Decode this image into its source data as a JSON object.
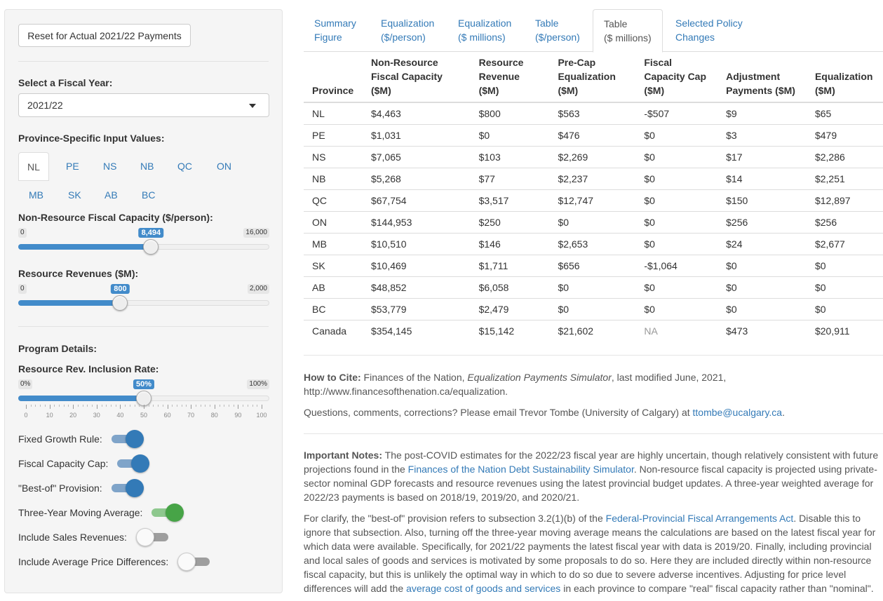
{
  "sidebar": {
    "reset_label": "Reset for Actual 2021/22 Payments",
    "fiscal_year_label": "Select a Fiscal Year:",
    "fiscal_year_value": "2021/22",
    "province_inputs_label": "Province-Specific Input Values:",
    "province_tabs": [
      "NL",
      "PE",
      "NS",
      "NB",
      "QC",
      "ON",
      "MB",
      "SK",
      "AB",
      "BC"
    ],
    "active_province": "NL",
    "nonres_label": "Non-Resource Fiscal Capacity ($/person):",
    "nonres_slider": {
      "min": 0,
      "max": 16000,
      "value": 8494,
      "min_label": "0",
      "max_label": "16,000",
      "value_label": "8,494"
    },
    "resrev_label": "Resource Revenues ($M):",
    "resrev_slider": {
      "min": 0,
      "max": 2000,
      "value": 800,
      "min_label": "0",
      "max_label": "2,000",
      "value_label": "800"
    },
    "program_label": "Program Details:",
    "inclusion_label": "Resource Rev. Inclusion Rate:",
    "inclusion_slider": {
      "min": 0,
      "max": 100,
      "value": 50,
      "min_label": "0%",
      "max_label": "100%",
      "value_label": "50%",
      "tick_labels": [
        "0",
        "10",
        "20",
        "30",
        "40",
        "50",
        "60",
        "70",
        "80",
        "90",
        "100"
      ]
    },
    "switches": [
      {
        "label": "Fixed Growth Rule:",
        "on": true
      },
      {
        "label": "Fiscal Capacity Cap:",
        "on": true
      },
      {
        "label": "\"Best-of\" Provision:",
        "on": true
      },
      {
        "label": "Three-Year Moving Average:",
        "on": true
      },
      {
        "label": "Include Sales Revenues:",
        "on": false
      },
      {
        "label": "Include Average Price Differences:",
        "on": false
      }
    ]
  },
  "tabs": [
    {
      "line1": "Summary",
      "line2": "Figure"
    },
    {
      "line1": "Equalization",
      "line2": "($/person)"
    },
    {
      "line1": "Equalization",
      "line2": "($ millions)"
    },
    {
      "line1": "Table",
      "line2": "($/person)"
    },
    {
      "line1": "Table",
      "line2": "($ millions)"
    },
    {
      "line1": "Selected Policy",
      "line2": "Changes"
    }
  ],
  "active_tab": 4,
  "table": {
    "headers": [
      [
        "Province"
      ],
      [
        "Non-Resource",
        "Fiscal Capacity",
        "($M)"
      ],
      [
        "Resource",
        "Revenue",
        "($M)"
      ],
      [
        "Pre-Cap",
        "Equalization",
        "($M)"
      ],
      [
        "Fiscal",
        "Capacity Cap",
        "($M)"
      ],
      [
        "Adjustment",
        "Payments ($M)"
      ],
      [
        "Equalization",
        "($M)"
      ]
    ],
    "rows": [
      [
        "NL",
        "$4,463",
        "$800",
        "$563",
        "-$507",
        "$9",
        "$65"
      ],
      [
        "PE",
        "$1,031",
        "$0",
        "$476",
        "$0",
        "$3",
        "$479"
      ],
      [
        "NS",
        "$7,065",
        "$103",
        "$2,269",
        "$0",
        "$17",
        "$2,286"
      ],
      [
        "NB",
        "$5,268",
        "$77",
        "$2,237",
        "$0",
        "$14",
        "$2,251"
      ],
      [
        "QC",
        "$67,754",
        "$3,517",
        "$12,747",
        "$0",
        "$150",
        "$12,897"
      ],
      [
        "ON",
        "$144,953",
        "$250",
        "$0",
        "$0",
        "$256",
        "$256"
      ],
      [
        "MB",
        "$10,510",
        "$146",
        "$2,653",
        "$0",
        "$24",
        "$2,677"
      ],
      [
        "SK",
        "$10,469",
        "$1,711",
        "$656",
        "-$1,064",
        "$0",
        "$0"
      ],
      [
        "AB",
        "$48,852",
        "$6,058",
        "$0",
        "$0",
        "$0",
        "$0"
      ],
      [
        "BC",
        "$53,779",
        "$2,479",
        "$0",
        "$0",
        "$0",
        "$0"
      ],
      [
        "Canada",
        "$354,145",
        "$15,142",
        "$21,602",
        "NA",
        "$473",
        "$20,911"
      ]
    ]
  },
  "cite": {
    "label": "How to Cite:",
    "text1": " Finances of the Nation, ",
    "title": "Equalization Payments Simulator",
    "text2": ", last modified June, 2021, http://www.financesofthenation.ca/equalization."
  },
  "contact": {
    "text": "Questions, comments, corrections? Please email Trevor Tombe (University of Calgary) at ",
    "email": "ttombe@ucalgary.ca",
    "end": "."
  },
  "notes": {
    "label": "Important Notes:",
    "p1a": " The post-COVID estimates for the 2022/23 fiscal year are highly uncertain, though relatively consistent with future projections found in the ",
    "p1link": "Finances of the Nation Debt Sustainability Simulator",
    "p1b": ". Non-resource fiscal capacity is projected using private-sector nominal GDP forecasts and resource revenues using the latest provincial budget updates. A three-year weighted average for 2022/23 payments is based on 2018/19, 2019/20, and 2020/21.",
    "p2a": "For clarify, the \"best-of\" provision refers to subsection 3.2(1)(b) of the ",
    "p2link1": "Federal-Provincial Fiscal Arrangements Act",
    "p2b": ". Disable this to ignore that subsection. Also, turning off the three-year moving average means the calculations are based on the latest fiscal year for which data were available. Specifically, for 2021/22 payments the latest fiscal year with data is 2019/20. Finally, including provincial and local sales of goods and services is motivated by some proposals to do so. Here they are included directly within non-resource fiscal capacity, but this is unlikely the optimal way in which to do so due to severe adverse incentives. Adjusting for price level differences will add the ",
    "p2link2": "average cost of goods and services",
    "p2c": " in each province to compare \"real\" fiscal capacity rather than \"nominal\"."
  }
}
